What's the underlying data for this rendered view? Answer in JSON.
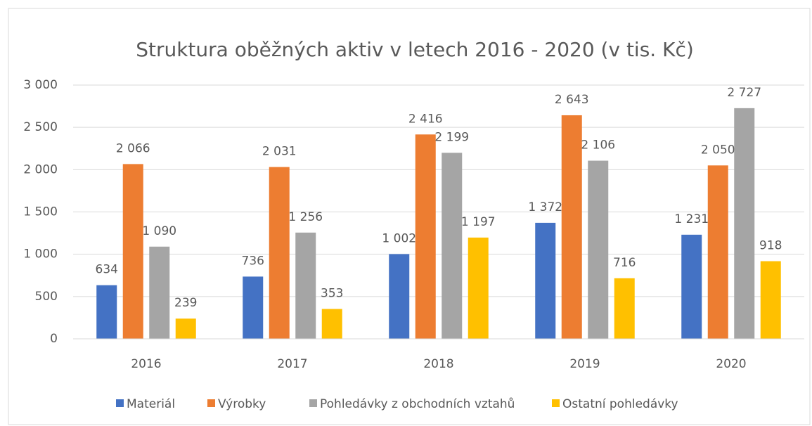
{
  "chart_data": {
    "type": "bar",
    "title": "Struktura oběžných aktiv v letech 2016 - 2020 (v tis. Kč)",
    "categories": [
      "2016",
      "2017",
      "2018",
      "2019",
      "2020"
    ],
    "series": [
      {
        "name": "Materiál",
        "color": "#4472c4",
        "values": [
          634,
          736,
          1002,
          1372,
          1231
        ],
        "value_labels": [
          "634",
          "736",
          "1 002",
          "1 372",
          "1 231"
        ]
      },
      {
        "name": "Výrobky",
        "color": "#ed7d31",
        "values": [
          2066,
          2031,
          2416,
          2643,
          2050
        ],
        "value_labels": [
          "2 066",
          "2 031",
          "2 416",
          "2 643",
          "2 050"
        ]
      },
      {
        "name": "Pohledávky z obchodních vztahů",
        "color": "#a5a5a5",
        "values": [
          1090,
          1256,
          2199,
          2106,
          2727
        ],
        "value_labels": [
          "1 090",
          "1 256",
          "2 199",
          "2 106",
          "2 727"
        ]
      },
      {
        "name": "Ostatní pohledávky",
        "color": "#ffc000",
        "values": [
          239,
          353,
          1197,
          716,
          918
        ],
        "value_labels": [
          "239",
          "353",
          "1 197",
          "716",
          "918"
        ]
      }
    ],
    "ylim": [
      0,
      3000
    ],
    "yticks": [
      0,
      500,
      {
        "value": 1000,
        "label": "1 000"
      },
      {
        "value": 1500,
        "label": "1 500"
      },
      {
        "value": 2000,
        "label": "2 000"
      },
      {
        "value": 2500,
        "label": "2 500"
      },
      {
        "value": 3000,
        "label": "3 000"
      }
    ],
    "grid": true,
    "legend": "bottom"
  }
}
